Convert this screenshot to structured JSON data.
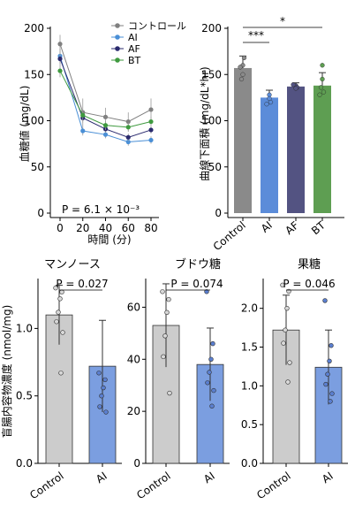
{
  "chart_data": [
    {
      "type": "line",
      "ylabel": "血糖値 (mg/dL)",
      "xlabel": "時間 (分)",
      "x": [
        0,
        20,
        40,
        60,
        80
      ],
      "ylim": [
        0,
        200
      ],
      "yticks": [
        0,
        50,
        100,
        150,
        200
      ],
      "series": [
        {
          "name": "コントロール",
          "color": "#808080",
          "values": [
            183,
            109,
            104,
            99,
            112
          ],
          "err": [
            10,
            15,
            10,
            10,
            12
          ]
        },
        {
          "name": "AI",
          "color": "#4a8fd6",
          "values": [
            170,
            89,
            85,
            77,
            79
          ],
          "err": [
            8,
            5,
            4,
            4,
            4
          ]
        },
        {
          "name": "AF",
          "color": "#2a2a6e",
          "values": [
            167,
            103,
            91,
            82,
            90
          ],
          "err": [
            6,
            5,
            4,
            4,
            4
          ]
        },
        {
          "name": "BT",
          "color": "#3f9a3f",
          "values": [
            154,
            106,
            95,
            93,
            99
          ],
          "err": [
            7,
            6,
            5,
            5,
            5
          ]
        }
      ],
      "annotation": "P = 6.1 × 10⁻³",
      "legend_position": "top-right"
    },
    {
      "type": "bar",
      "ylabel": "曲線下面積 (mg/dL*hr)",
      "categories": [
        "Control",
        "AI",
        "AF",
        "BT"
      ],
      "values": [
        157,
        125,
        137,
        138
      ],
      "err": [
        13,
        8,
        4,
        14
      ],
      "colors": [
        "#8a8a8a",
        "#5b8cd9",
        "#535382",
        "#5e9e52"
      ],
      "points": [
        [
          160,
          168,
          158,
          150,
          145
        ],
        [
          128,
          120,
          118,
          124
        ],
        [
          138,
          136,
          139,
          135
        ],
        [
          145,
          131,
          128,
          160,
          136
        ]
      ],
      "ylim": [
        0,
        200
      ],
      "yticks": [
        0,
        50,
        100,
        150,
        200
      ],
      "significance": [
        {
          "label": "***",
          "from": "Control",
          "to": "AI"
        },
        {
          "label": "*",
          "from": "Control",
          "to": "BT"
        }
      ]
    },
    {
      "type": "bar",
      "title": "マンノース",
      "ylabel": "盲腸内容物濃度 (nmol/mg)",
      "categories": [
        "Control",
        "AI"
      ],
      "values": [
        1.1,
        0.72
      ],
      "err": [
        0.22,
        0.34
      ],
      "colors": [
        "#cccccc",
        "#7b9ee0"
      ],
      "points": [
        [
          1.3,
          1.27,
          1.22,
          1.12,
          1.05,
          0.97,
          0.67
        ],
        [
          0.67,
          0.62,
          0.56,
          0.5,
          0.42,
          0.38
        ]
      ],
      "ylim": [
        0,
        1.35
      ],
      "yticks": [
        0.0,
        0.5,
        1.0
      ],
      "ytick_labels": [
        "0.0",
        "0.5",
        "1.0"
      ],
      "pvalue": "P = 0.027"
    },
    {
      "type": "bar",
      "title": "ブドウ糖",
      "categories": [
        "Control",
        "AI"
      ],
      "values": [
        53,
        38
      ],
      "err": [
        16,
        14
      ],
      "colors": [
        "#cccccc",
        "#7b9ee0"
      ],
      "points": [
        [
          66,
          63,
          58,
          49,
          41,
          27
        ],
        [
          66,
          46,
          40,
          35,
          31,
          28,
          22
        ]
      ],
      "ylim": [
        0,
        70
      ],
      "yticks": [
        0,
        20,
        40,
        60
      ],
      "ytick_labels": [
        "0",
        "20",
        "40",
        "60"
      ],
      "pvalue": "P = 0.074"
    },
    {
      "type": "bar",
      "title": "果糖",
      "categories": [
        "Control",
        "AI"
      ],
      "values": [
        1.72,
        1.24
      ],
      "err": [
        0.45,
        0.48
      ],
      "colors": [
        "#cccccc",
        "#7b9ee0"
      ],
      "points": [
        [
          2.3,
          2.22,
          2.0,
          1.72,
          1.55,
          1.3,
          1.05
        ],
        [
          2.1,
          1.52,
          1.32,
          1.15,
          1.02,
          0.9,
          0.8
        ]
      ],
      "ylim": [
        0,
        2.35
      ],
      "yticks": [
        0.0,
        0.5,
        1.0,
        1.5,
        2.0
      ],
      "ytick_labels": [
        "0.0",
        "0.5",
        "1.0",
        "1.5",
        "2.0"
      ],
      "pvalue": "P = 0.046"
    }
  ]
}
